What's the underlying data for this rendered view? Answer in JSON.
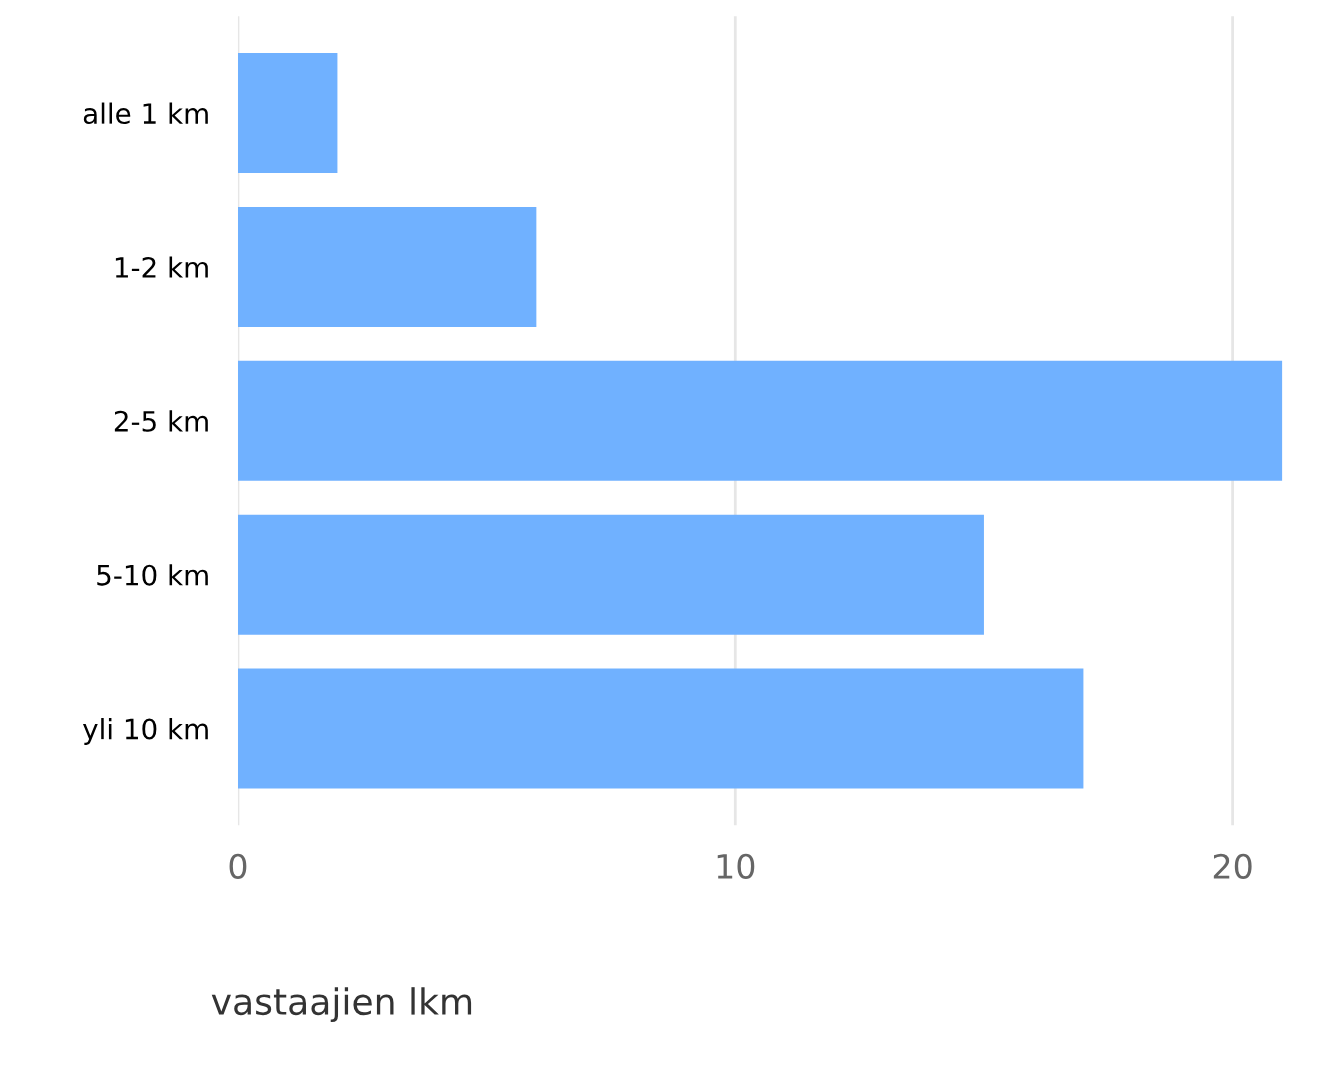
{
  "chart_data": {
    "type": "bar",
    "orientation": "horizontal",
    "categories": [
      "alle 1 km",
      "1-2 km",
      "2-5 km",
      "5-10 km",
      "yli 10 km"
    ],
    "values": [
      2,
      6,
      21,
      15,
      17
    ],
    "color": "#70b1ff",
    "xlabel": "vastaajien lkm",
    "xlim": [
      0,
      21
    ],
    "xticks": [
      0,
      10,
      20
    ],
    "grid": "x",
    "legend": false
  }
}
